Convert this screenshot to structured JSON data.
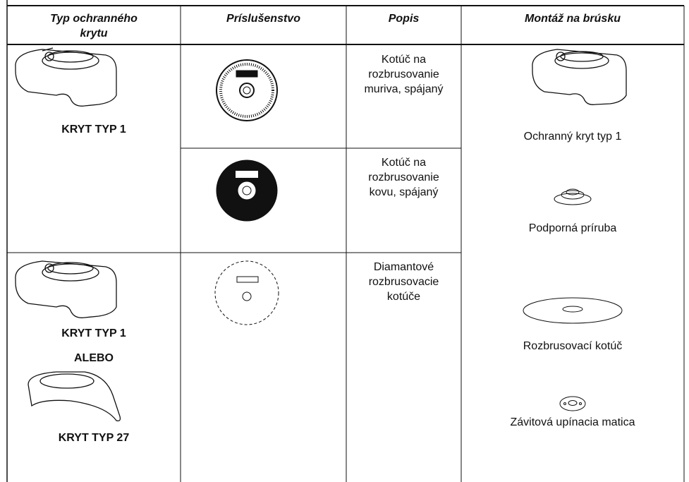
{
  "table": {
    "header": [
      "Typ ochranného krytu",
      "Príslušenstvo",
      "Popis",
      "Montáž na brúsku"
    ],
    "guards": [
      [
        "KRYT TYP 1"
      ],
      [
        "KRYT TYP 1",
        "ALEBO",
        "KRYT TYP 27"
      ]
    ],
    "descriptions": [
      "Kotúč na rozbrusovanie muriva, spájaný",
      "Kotúč na rozbrusovanie kovu, spájaný",
      "Diamantové rozbrusovacie kotúče"
    ],
    "mounting": [
      "Ochranný kryt typ 1",
      "Podporná príruba",
      "Rozbrusovací kotúč",
      "Závitová upínacia matica"
    ]
  }
}
